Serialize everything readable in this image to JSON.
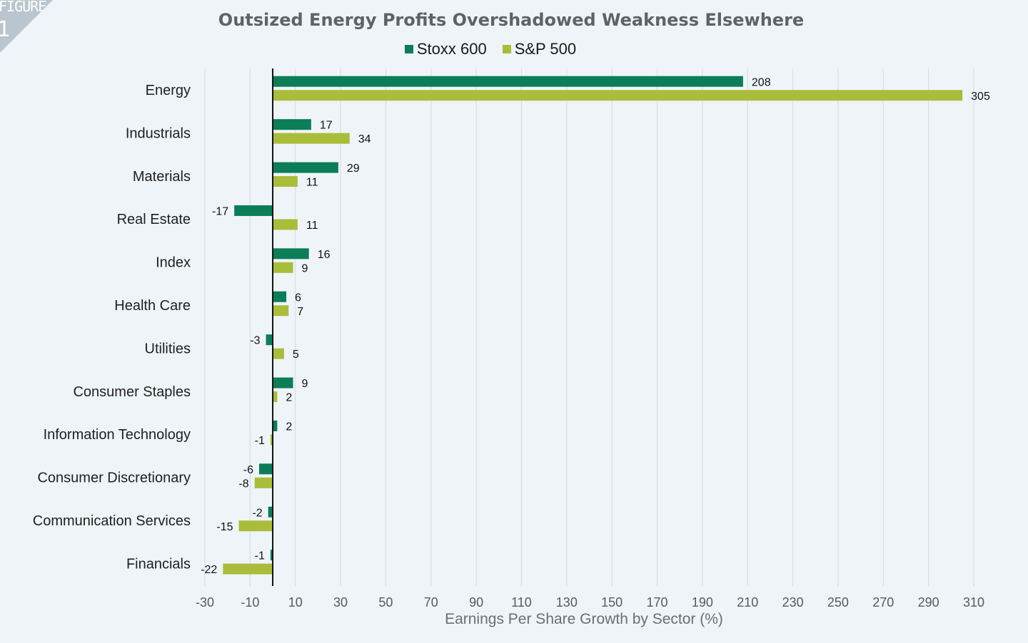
{
  "badge": {
    "label": "FIGURE",
    "number": "1"
  },
  "chart_data": {
    "type": "bar",
    "orientation": "horizontal",
    "title": "Outsized Energy Profits Overshadowed Weakness Elsewhere",
    "xlabel": "Earnings Per Share Growth by Sector (%)",
    "ylabel": "",
    "xlim": [
      -30,
      310
    ],
    "xticks": [
      -30,
      -10,
      10,
      30,
      50,
      70,
      90,
      110,
      130,
      150,
      170,
      190,
      210,
      230,
      250,
      270,
      290,
      310
    ],
    "grid": true,
    "legend_position": "top-center",
    "categories": [
      "Energy",
      "Industrials",
      "Materials",
      "Real Estate",
      "Index",
      "Health Care",
      "Utilities",
      "Consumer Staples",
      "Information Technology",
      "Consumer Discretionary",
      "Communication Services",
      "Financials"
    ],
    "series": [
      {
        "name": "Stoxx 600",
        "color": "#0b7d57",
        "values": [
          208,
          17,
          29,
          -17,
          16,
          6,
          -3,
          9,
          2,
          -6,
          -2,
          -1
        ]
      },
      {
        "name": "S&P 500",
        "color": "#a9bd3a",
        "values": [
          305,
          34,
          11,
          11,
          9,
          7,
          5,
          2,
          -1,
          -8,
          -15,
          -22
        ]
      }
    ]
  }
}
